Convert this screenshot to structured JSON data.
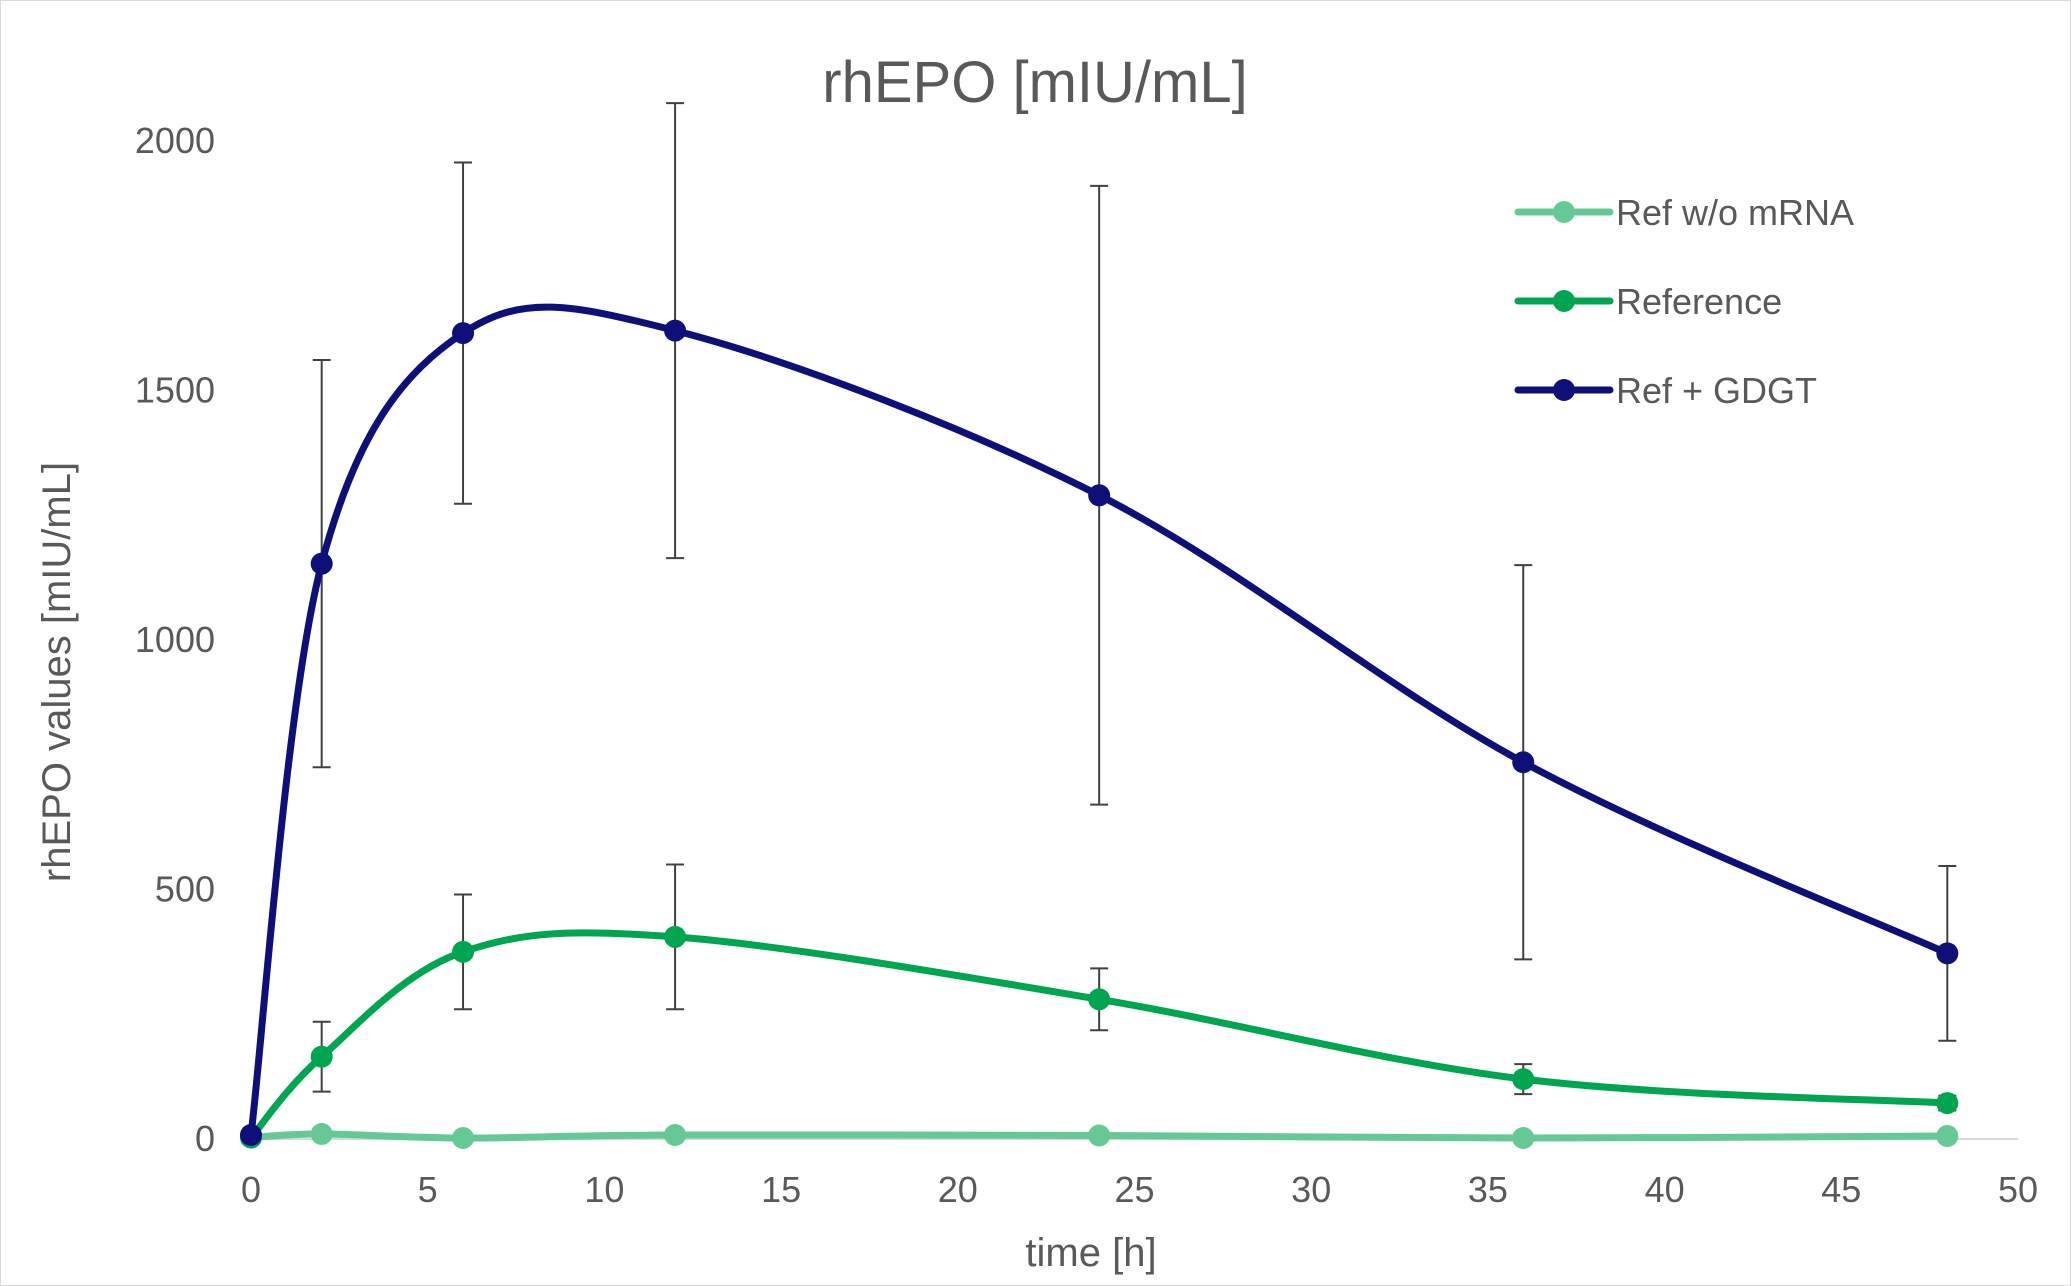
{
  "chart_data": {
    "type": "line",
    "title": "rhEPO [mIU/mL]",
    "xlabel": "time [h]",
    "ylabel": "rhEPO values [mIU/mL]",
    "xlim": [
      0,
      50
    ],
    "ylim": [
      0,
      2000
    ],
    "xticks": [
      "0",
      "5",
      "10",
      "15",
      "20",
      "25",
      "30",
      "35",
      "40",
      "45",
      "50"
    ],
    "yticks": [
      "0",
      "500",
      "1000",
      "1500",
      "2000"
    ],
    "grid": false,
    "legend_position": "top-right",
    "smooth": true,
    "series": [
      {
        "name": "Ref w/o mRNA",
        "color": "#66c995",
        "x": [
          0,
          2,
          6,
          12,
          24,
          36,
          48
        ],
        "y": [
          3,
          10,
          2,
          8,
          7,
          2,
          6
        ],
        "error": null
      },
      {
        "name": "Reference",
        "color": "#00a550",
        "x": [
          0,
          2,
          6,
          12,
          24,
          36,
          48
        ],
        "y": [
          3,
          165,
          375,
          405,
          280,
          120,
          72
        ],
        "error": [
          0,
          70,
          115,
          145,
          62,
          30,
          15
        ]
      },
      {
        "name": "Ref + GDGT",
        "color": "#0f0f7a",
        "x": [
          0,
          2,
          6,
          12,
          24,
          36,
          48
        ],
        "y": [
          8,
          1153,
          1615,
          1620,
          1290,
          755,
          372
        ],
        "error": [
          0,
          408,
          342,
          456,
          620,
          395,
          175
        ]
      }
    ]
  }
}
